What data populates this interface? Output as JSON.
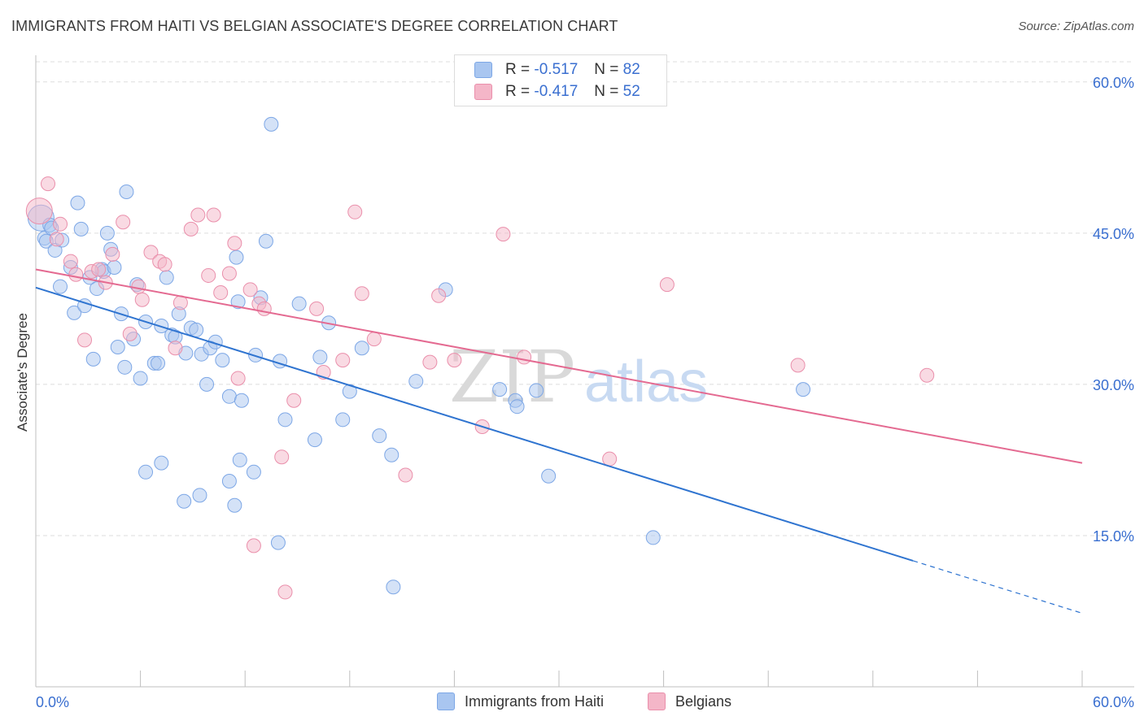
{
  "title": "IMMIGRANTS FROM HAITI VS BELGIAN ASSOCIATE'S DEGREE CORRELATION CHART",
  "source": "Source: ZipAtlas.com",
  "watermark": {
    "zip": "ZIP",
    "atlas": "atlas"
  },
  "legend_top": {
    "rows": [
      {
        "r_label": "R = ",
        "r_value": "-0.517",
        "n_label": "N = ",
        "n_value": "82",
        "color": "#a9c6f0"
      },
      {
        "r_label": "R = ",
        "r_value": "-0.417",
        "n_label": "N = ",
        "n_value": "52",
        "color": "#f4b6c8"
      }
    ]
  },
  "legend_bottom": [
    {
      "label": "Immigrants from Haiti",
      "color": "#a9c6f0"
    },
    {
      "label": "Belgians",
      "color": "#f4b6c8"
    }
  ],
  "chart_data": {
    "type": "scatter",
    "title": "IMMIGRANTS FROM HAITI VS BELGIAN ASSOCIATE'S DEGREE CORRELATION CHART",
    "xlabel": "",
    "ylabel": "Associate's Degree",
    "xlim": [
      0,
      60
    ],
    "ylim": [
      0,
      62
    ],
    "x_tick_labels": [
      "0.0%",
      "60.0%"
    ],
    "y_ticks": [
      15,
      30,
      45,
      60
    ],
    "y_tick_labels": [
      "15.0%",
      "30.0%",
      "45.0%",
      "60.0%"
    ],
    "grid": true,
    "legend_position": "top-center",
    "series": [
      {
        "name": "Immigrants from Haiti",
        "color": "#a9c6f0",
        "stroke": "#7da7e6",
        "line_color": "#2f74d0",
        "regression": {
          "x0": 0,
          "y0": 39.6,
          "x1": 50.3,
          "y1": 12.5,
          "dashed_to_x": 60,
          "dashed_to_y": 7.3
        },
        "points": [
          [
            0.3,
            46.5
          ],
          [
            0.5,
            44.5
          ],
          [
            0.6,
            44.2
          ],
          [
            0.8,
            45.8
          ],
          [
            0.9,
            45.5
          ],
          [
            1.1,
            43.3
          ],
          [
            1.5,
            44.3
          ],
          [
            1.4,
            39.7
          ],
          [
            2.0,
            41.6
          ],
          [
            2.2,
            37.1
          ],
          [
            2.4,
            48.0
          ],
          [
            2.6,
            45.4
          ],
          [
            2.8,
            37.8
          ],
          [
            3.1,
            40.6
          ],
          [
            3.3,
            32.5
          ],
          [
            3.5,
            39.5
          ],
          [
            3.8,
            41.4
          ],
          [
            3.9,
            41.2
          ],
          [
            4.1,
            45.0
          ],
          [
            4.3,
            43.4
          ],
          [
            4.5,
            41.6
          ],
          [
            4.7,
            33.7
          ],
          [
            4.9,
            37.0
          ],
          [
            5.1,
            31.7
          ],
          [
            5.2,
            49.1
          ],
          [
            5.6,
            34.5
          ],
          [
            5.8,
            39.9
          ],
          [
            6.0,
            30.6
          ],
          [
            6.3,
            36.2
          ],
          [
            6.8,
            32.1
          ],
          [
            7.0,
            32.1
          ],
          [
            7.2,
            35.8
          ],
          [
            7.5,
            40.6
          ],
          [
            7.8,
            34.9
          ],
          [
            8.0,
            34.7
          ],
          [
            8.2,
            37.0
          ],
          [
            8.6,
            33.1
          ],
          [
            8.9,
            35.6
          ],
          [
            9.2,
            35.4
          ],
          [
            9.5,
            33.0
          ],
          [
            9.8,
            30.0
          ],
          [
            10.0,
            33.6
          ],
          [
            10.3,
            34.2
          ],
          [
            10.7,
            32.4
          ],
          [
            11.1,
            28.8
          ],
          [
            11.5,
            42.6
          ],
          [
            11.6,
            38.2
          ],
          [
            11.8,
            28.4
          ],
          [
            12.6,
            32.9
          ],
          [
            12.9,
            38.6
          ],
          [
            13.2,
            44.2
          ],
          [
            13.5,
            55.8
          ],
          [
            14.0,
            32.3
          ],
          [
            14.3,
            26.5
          ],
          [
            15.1,
            38.0
          ],
          [
            16.0,
            24.5
          ],
          [
            16.3,
            32.7
          ],
          [
            16.8,
            36.1
          ],
          [
            17.6,
            26.5
          ],
          [
            18.0,
            29.3
          ],
          [
            18.7,
            33.6
          ],
          [
            19.7,
            24.9
          ],
          [
            20.4,
            23.0
          ],
          [
            21.8,
            30.3
          ],
          [
            23.5,
            39.4
          ],
          [
            26.6,
            29.5
          ],
          [
            27.5,
            28.4
          ],
          [
            27.6,
            27.8
          ],
          [
            28.7,
            29.4
          ],
          [
            8.5,
            18.4
          ],
          [
            7.2,
            22.2
          ],
          [
            6.3,
            21.3
          ],
          [
            9.4,
            19.0
          ],
          [
            11.1,
            20.4
          ],
          [
            11.4,
            18.0
          ],
          [
            11.7,
            22.5
          ],
          [
            12.5,
            21.3
          ],
          [
            13.9,
            14.3
          ],
          [
            20.5,
            9.9
          ],
          [
            29.4,
            20.9
          ],
          [
            35.4,
            14.8
          ],
          [
            44.0,
            29.5
          ]
        ]
      },
      {
        "name": "Belgians",
        "color": "#f4b6c8",
        "stroke": "#ea8fab",
        "line_color": "#e46a91",
        "regression": {
          "x0": 0,
          "y0": 41.4,
          "x1": 60,
          "y1": 22.2
        },
        "points": [
          [
            0.2,
            47.2
          ],
          [
            0.7,
            49.9
          ],
          [
            1.2,
            44.4
          ],
          [
            1.4,
            45.9
          ],
          [
            2.0,
            42.2
          ],
          [
            2.3,
            40.9
          ],
          [
            2.8,
            34.4
          ],
          [
            3.2,
            41.2
          ],
          [
            3.6,
            41.4
          ],
          [
            4.0,
            40.1
          ],
          [
            4.4,
            42.9
          ],
          [
            5.0,
            46.1
          ],
          [
            5.4,
            35.0
          ],
          [
            5.9,
            39.7
          ],
          [
            6.1,
            38.4
          ],
          [
            6.6,
            43.1
          ],
          [
            7.1,
            42.2
          ],
          [
            7.4,
            41.9
          ],
          [
            8.0,
            33.6
          ],
          [
            8.3,
            38.1
          ],
          [
            8.9,
            45.4
          ],
          [
            9.3,
            46.8
          ],
          [
            9.9,
            40.8
          ],
          [
            10.2,
            46.8
          ],
          [
            10.6,
            39.1
          ],
          [
            11.1,
            41.0
          ],
          [
            11.4,
            44.0
          ],
          [
            11.6,
            30.6
          ],
          [
            12.3,
            39.4
          ],
          [
            12.8,
            38.0
          ],
          [
            13.1,
            37.5
          ],
          [
            14.1,
            22.8
          ],
          [
            14.8,
            28.4
          ],
          [
            16.1,
            37.5
          ],
          [
            16.5,
            31.2
          ],
          [
            17.6,
            32.4
          ],
          [
            18.3,
            47.1
          ],
          [
            18.7,
            39.0
          ],
          [
            19.4,
            34.5
          ],
          [
            21.2,
            21.0
          ],
          [
            22.6,
            32.2
          ],
          [
            23.1,
            38.8
          ],
          [
            24.0,
            32.4
          ],
          [
            25.6,
            25.8
          ],
          [
            26.8,
            44.9
          ],
          [
            28.0,
            32.7
          ],
          [
            32.9,
            22.6
          ],
          [
            36.2,
            39.9
          ],
          [
            43.7,
            31.9
          ],
          [
            51.1,
            30.9
          ],
          [
            12.5,
            14.0
          ],
          [
            14.3,
            9.4
          ]
        ]
      }
    ]
  }
}
